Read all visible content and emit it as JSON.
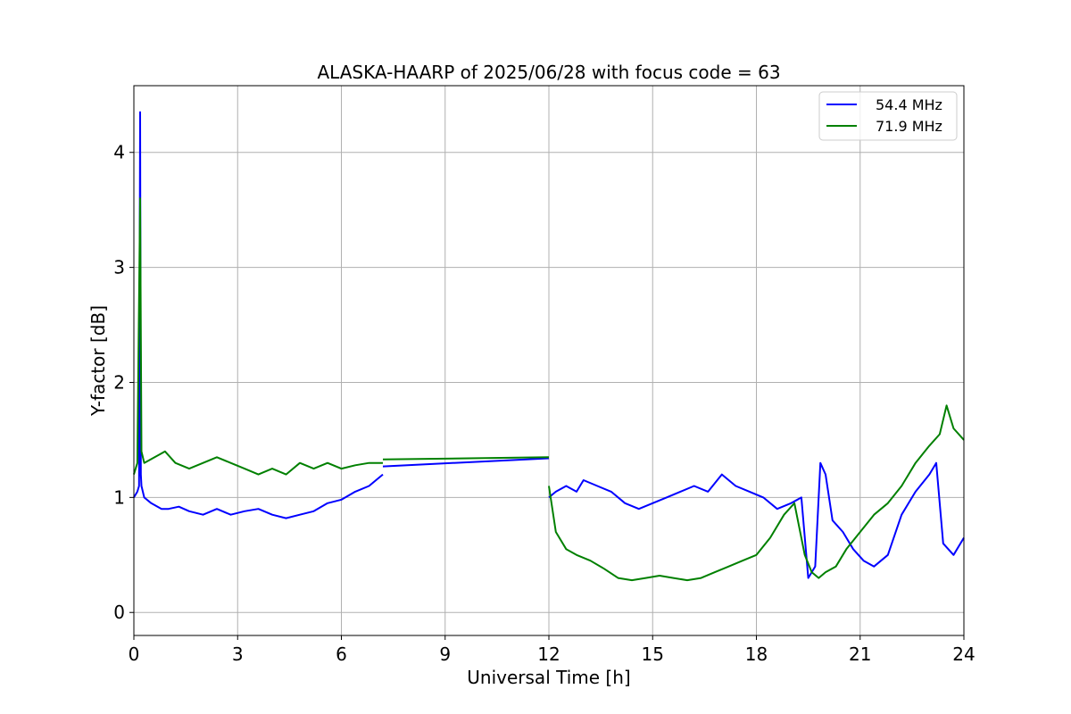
{
  "chart_data": {
    "type": "line",
    "title": "ALASKA-HAARP of 2025/06/28 with focus code = 63",
    "xlabel": "Universal Time [h]",
    "ylabel": "Y-factor [dB]",
    "xlim": [
      0,
      24
    ],
    "ylim": [
      -0.2,
      4.58
    ],
    "xticks": [
      0,
      3,
      6,
      9,
      12,
      15,
      18,
      21,
      24
    ],
    "yticks": [
      0,
      1,
      2,
      3,
      4
    ],
    "grid": true,
    "legend_position": "top-right",
    "series": [
      {
        "name": "54.4 MHz",
        "color": "#0000ff",
        "segments": [
          {
            "x": [
              0,
              0.1,
              0.15,
              0.18,
              0.2,
              0.22,
              0.3,
              0.5,
              0.8,
              1.0,
              1.3,
              1.6,
              2.0,
              2.4,
              2.8,
              3.2,
              3.6,
              4.0,
              4.4,
              4.8,
              5.2,
              5.6,
              6.0,
              6.4,
              6.8,
              7.0,
              7.2
            ],
            "y": [
              1.0,
              1.05,
              1.1,
              4.35,
              1.2,
              1.1,
              1.0,
              0.95,
              0.9,
              0.9,
              0.92,
              0.88,
              0.85,
              0.9,
              0.85,
              0.88,
              0.9,
              0.85,
              0.82,
              0.85,
              0.88,
              0.95,
              0.98,
              1.05,
              1.1,
              1.15,
              1.2
            ]
          },
          {
            "x": [
              7.2,
              12.0
            ],
            "y": [
              1.27,
              1.34
            ]
          },
          {
            "x": [
              12.0,
              12.2,
              12.5,
              12.8,
              13.0,
              13.4,
              13.8,
              14.2,
              14.6,
              15.0,
              15.4,
              15.8,
              16.2,
              16.6,
              17.0,
              17.4,
              17.8,
              18.2,
              18.6,
              19.0,
              19.3,
              19.5,
              19.7,
              19.85,
              20.0,
              20.2,
              20.5,
              20.8,
              21.1,
              21.4,
              21.8,
              22.2,
              22.6,
              23.0,
              23.2,
              23.4,
              23.7,
              24.0
            ],
            "y": [
              1.0,
              1.05,
              1.1,
              1.05,
              1.15,
              1.1,
              1.05,
              0.95,
              0.9,
              0.95,
              1.0,
              1.05,
              1.1,
              1.05,
              1.2,
              1.1,
              1.05,
              1.0,
              0.9,
              0.95,
              1.0,
              0.3,
              0.4,
              1.3,
              1.2,
              0.8,
              0.7,
              0.55,
              0.45,
              0.4,
              0.5,
              0.85,
              1.05,
              1.2,
              1.3,
              0.6,
              0.5,
              0.65
            ]
          }
        ]
      },
      {
        "name": "71.9 MHz",
        "color": "#008000",
        "segments": [
          {
            "x": [
              0,
              0.1,
              0.18,
              0.22,
              0.3,
              0.6,
              0.9,
              1.2,
              1.6,
              2.0,
              2.4,
              2.8,
              3.2,
              3.6,
              4.0,
              4.4,
              4.8,
              5.2,
              5.6,
              6.0,
              6.4,
              6.8,
              7.2
            ],
            "y": [
              1.2,
              1.3,
              3.6,
              1.4,
              1.3,
              1.35,
              1.4,
              1.3,
              1.25,
              1.3,
              1.35,
              1.3,
              1.25,
              1.2,
              1.25,
              1.2,
              1.3,
              1.25,
              1.3,
              1.25,
              1.28,
              1.3,
              1.3
            ]
          },
          {
            "x": [
              7.2,
              12.0
            ],
            "y": [
              1.33,
              1.35
            ]
          },
          {
            "x": [
              12.0,
              12.2,
              12.5,
              12.8,
              13.2,
              13.6,
              14.0,
              14.4,
              14.8,
              15.2,
              15.6,
              16.0,
              16.4,
              16.8,
              17.2,
              17.6,
              18.0,
              18.4,
              18.8,
              19.1,
              19.4,
              19.6,
              19.8,
              20.0,
              20.3,
              20.6,
              21.0,
              21.4,
              21.8,
              22.2,
              22.6,
              23.0,
              23.3,
              23.5,
              23.7,
              24.0
            ],
            "y": [
              1.1,
              0.7,
              0.55,
              0.5,
              0.45,
              0.38,
              0.3,
              0.28,
              0.3,
              0.32,
              0.3,
              0.28,
              0.3,
              0.35,
              0.4,
              0.45,
              0.5,
              0.65,
              0.85,
              0.95,
              0.5,
              0.35,
              0.3,
              0.35,
              0.4,
              0.55,
              0.7,
              0.85,
              0.95,
              1.1,
              1.3,
              1.45,
              1.55,
              1.8,
              1.6,
              1.5
            ]
          }
        ]
      }
    ]
  }
}
